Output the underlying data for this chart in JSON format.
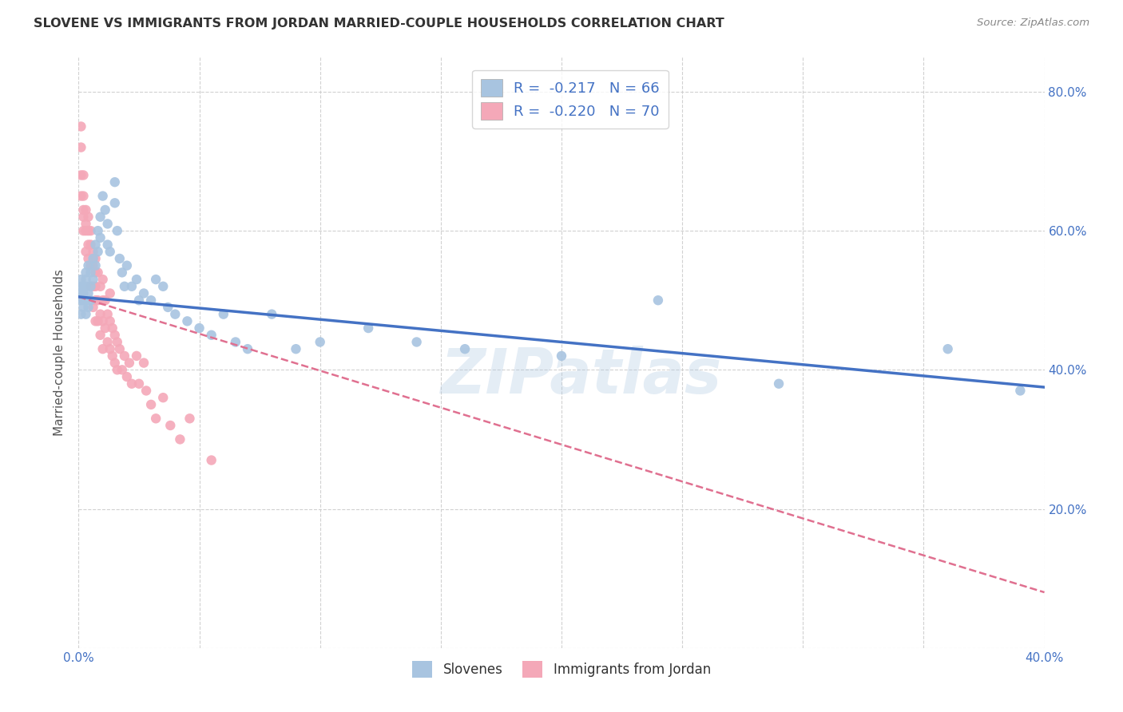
{
  "title": "SLOVENE VS IMMIGRANTS FROM JORDAN MARRIED-COUPLE HOUSEHOLDS CORRELATION CHART",
  "source": "Source: ZipAtlas.com",
  "ylabel": "Married-couple Households",
  "xmin": 0.0,
  "xmax": 0.4,
  "ymin": 0.0,
  "ymax": 0.85,
  "x_ticks": [
    0.0,
    0.05,
    0.1,
    0.15,
    0.2,
    0.25,
    0.3,
    0.35,
    0.4
  ],
  "x_tick_labels": [
    "0.0%",
    "",
    "",
    "",
    "",
    "",
    "",
    "",
    "40.0%"
  ],
  "y_ticks": [
    0.0,
    0.2,
    0.4,
    0.6,
    0.8
  ],
  "y_tick_labels_right": [
    "",
    "20.0%",
    "40.0%",
    "60.0%",
    "80.0%"
  ],
  "slovene_color": "#a8c4e0",
  "jordan_color": "#f4a8b8",
  "slovene_line_color": "#4472c4",
  "jordan_line_color": "#e07090",
  "watermark": "ZIPatlas",
  "slovene_scatter_x": [
    0.001,
    0.001,
    0.001,
    0.001,
    0.001,
    0.002,
    0.002,
    0.002,
    0.002,
    0.003,
    0.003,
    0.003,
    0.003,
    0.003,
    0.004,
    0.004,
    0.004,
    0.005,
    0.005,
    0.005,
    0.006,
    0.006,
    0.007,
    0.007,
    0.008,
    0.008,
    0.009,
    0.009,
    0.01,
    0.011,
    0.012,
    0.012,
    0.013,
    0.015,
    0.015,
    0.016,
    0.017,
    0.018,
    0.019,
    0.02,
    0.022,
    0.024,
    0.025,
    0.027,
    0.03,
    0.032,
    0.035,
    0.037,
    0.04,
    0.045,
    0.05,
    0.055,
    0.06,
    0.065,
    0.07,
    0.08,
    0.09,
    0.1,
    0.12,
    0.14,
    0.16,
    0.2,
    0.24,
    0.29,
    0.36,
    0.39
  ],
  "slovene_scatter_y": [
    0.51,
    0.5,
    0.48,
    0.52,
    0.53,
    0.5,
    0.52,
    0.49,
    0.51,
    0.54,
    0.52,
    0.5,
    0.48,
    0.53,
    0.55,
    0.51,
    0.49,
    0.54,
    0.52,
    0.5,
    0.56,
    0.53,
    0.58,
    0.55,
    0.6,
    0.57,
    0.62,
    0.59,
    0.65,
    0.63,
    0.61,
    0.58,
    0.57,
    0.64,
    0.67,
    0.6,
    0.56,
    0.54,
    0.52,
    0.55,
    0.52,
    0.53,
    0.5,
    0.51,
    0.5,
    0.53,
    0.52,
    0.49,
    0.48,
    0.47,
    0.46,
    0.45,
    0.48,
    0.44,
    0.43,
    0.48,
    0.43,
    0.44,
    0.46,
    0.44,
    0.43,
    0.42,
    0.5,
    0.38,
    0.43,
    0.37
  ],
  "jordan_scatter_x": [
    0.001,
    0.001,
    0.001,
    0.001,
    0.002,
    0.002,
    0.002,
    0.002,
    0.002,
    0.003,
    0.003,
    0.003,
    0.003,
    0.004,
    0.004,
    0.004,
    0.004,
    0.005,
    0.005,
    0.005,
    0.005,
    0.006,
    0.006,
    0.006,
    0.006,
    0.007,
    0.007,
    0.007,
    0.007,
    0.007,
    0.008,
    0.008,
    0.008,
    0.009,
    0.009,
    0.009,
    0.01,
    0.01,
    0.01,
    0.01,
    0.011,
    0.011,
    0.012,
    0.012,
    0.013,
    0.013,
    0.013,
    0.014,
    0.014,
    0.015,
    0.015,
    0.016,
    0.016,
    0.017,
    0.018,
    0.019,
    0.02,
    0.021,
    0.022,
    0.024,
    0.025,
    0.027,
    0.028,
    0.03,
    0.032,
    0.035,
    0.038,
    0.042,
    0.046,
    0.055
  ],
  "jordan_scatter_y": [
    0.72,
    0.68,
    0.65,
    0.75,
    0.62,
    0.65,
    0.68,
    0.6,
    0.63,
    0.6,
    0.63,
    0.57,
    0.61,
    0.6,
    0.56,
    0.62,
    0.58,
    0.55,
    0.58,
    0.52,
    0.6,
    0.55,
    0.52,
    0.57,
    0.49,
    0.54,
    0.5,
    0.47,
    0.52,
    0.56,
    0.5,
    0.47,
    0.54,
    0.48,
    0.52,
    0.45,
    0.5,
    0.47,
    0.53,
    0.43,
    0.5,
    0.46,
    0.48,
    0.44,
    0.47,
    0.43,
    0.51,
    0.46,
    0.42,
    0.45,
    0.41,
    0.44,
    0.4,
    0.43,
    0.4,
    0.42,
    0.39,
    0.41,
    0.38,
    0.42,
    0.38,
    0.41,
    0.37,
    0.35,
    0.33,
    0.36,
    0.32,
    0.3,
    0.33,
    0.27
  ],
  "slovene_trendline_x": [
    0.0,
    0.4
  ],
  "slovene_trendline_y": [
    0.505,
    0.375
  ],
  "jordan_trendline_x": [
    0.0,
    0.4
  ],
  "jordan_trendline_y": [
    0.505,
    0.08
  ]
}
